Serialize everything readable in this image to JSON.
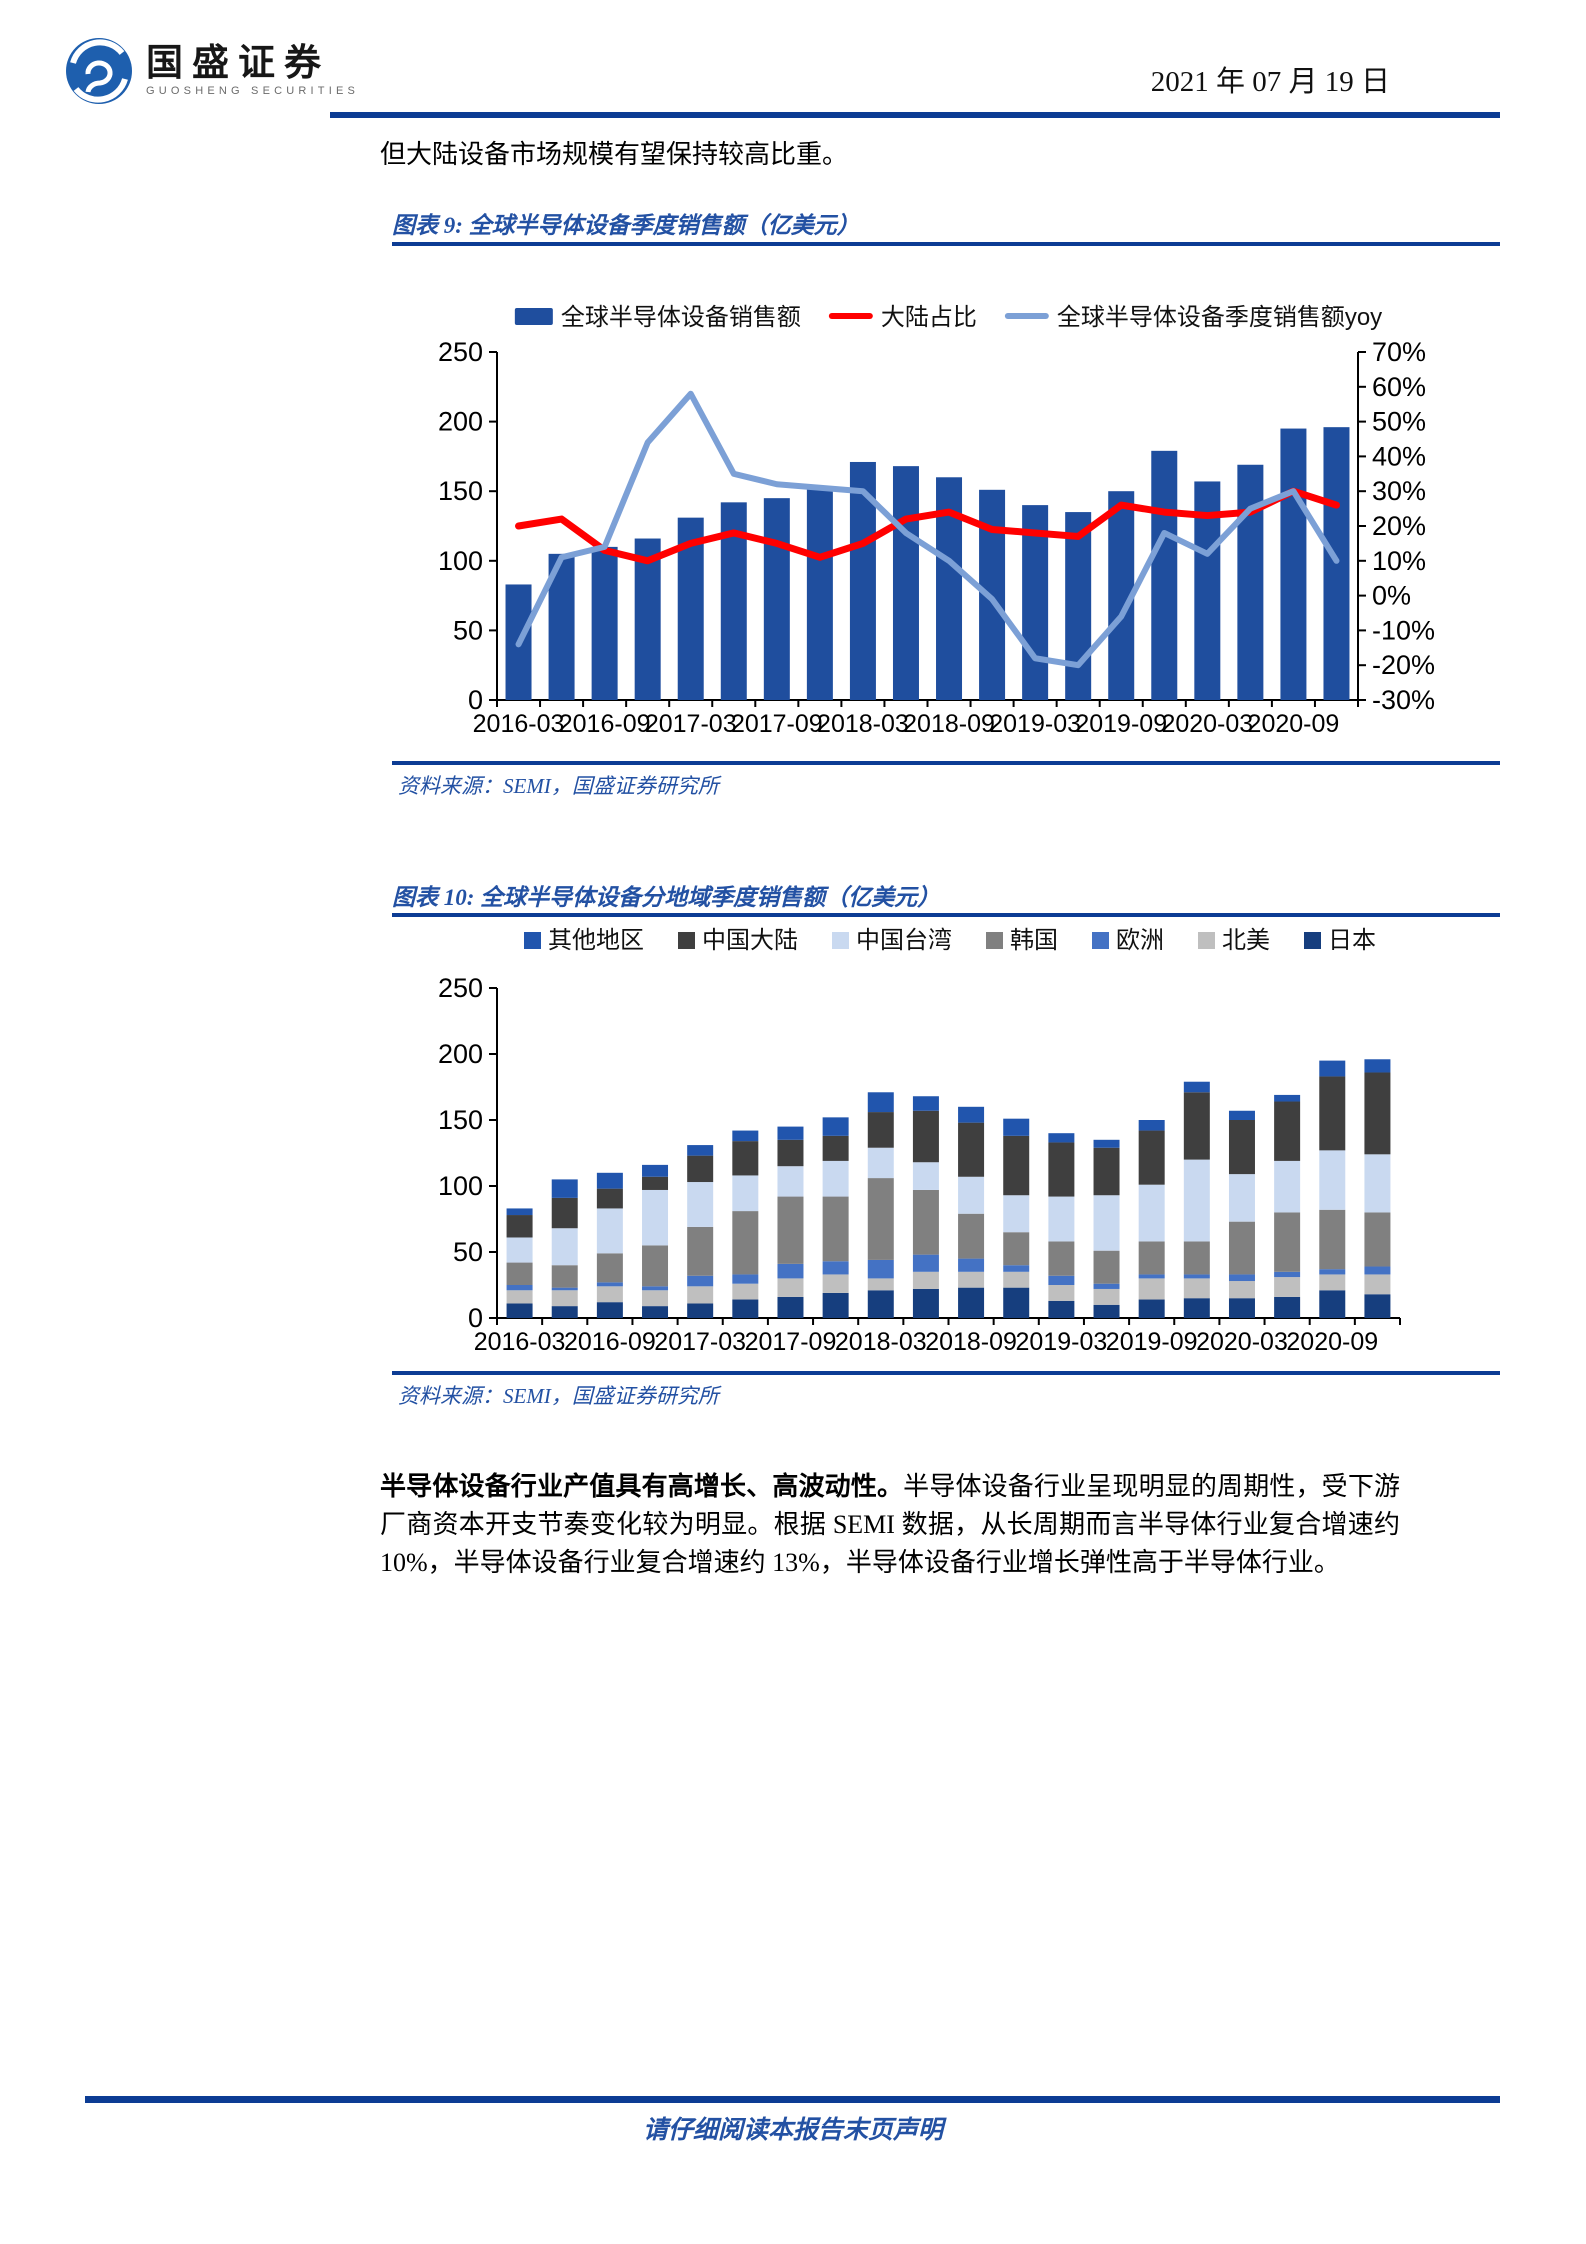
{
  "page": {
    "brand": {
      "name_cn": "国盛证券",
      "name_en": "GUOSHENG SECURITIES"
    },
    "date": "2021 年 07 月 19 日",
    "intro_text": "但大陆设备市场规模有望保持较高比重。",
    "footer_text": "请仔细阅读本报告末页声明"
  },
  "figure9": {
    "caption": "图表 9: 全球半导体设备季度销售额（亿美元）",
    "source": "资料来源：SEMI，国盛证券研究所"
  },
  "figure10": {
    "caption": "图表 10: 全球半导体设备分地域季度销售额（亿美元）",
    "source": "资料来源：SEMI，国盛证券研究所"
  },
  "paragraph": {
    "bold": "半导体设备行业产值具有高增长、高波动性。",
    "rest": "半导体设备行业呈现明显的周期性，受下游厂商资本开支节奏变化较为明显。根据 SEMI 数据，从长周期而言半导体行业复合增速约 10%，半导体设备行业复合增速约 13%，半导体设备行业增长弹性高于半导体行业。"
  },
  "chart_data": [
    {
      "id": "fig9",
      "type": "bar",
      "title": "全球半导体设备季度销售额（亿美元）",
      "x": [
        "2016-03",
        "2016-06",
        "2016-09",
        "2016-12",
        "2017-03",
        "2017-06",
        "2017-09",
        "2017-12",
        "2018-03",
        "2018-06",
        "2018-09",
        "2018-12",
        "2019-03",
        "2019-06",
        "2019-09",
        "2019-12",
        "2020-03",
        "2020-06",
        "2020-09",
        "2020-12"
      ],
      "x_label_every": 2,
      "legend_position": "top",
      "grid": false,
      "left_axis": {
        "min": 0,
        "max": 250,
        "ticks": [
          0,
          50,
          100,
          150,
          200,
          250
        ]
      },
      "right_axis": {
        "min": -30,
        "max": 70,
        "ticks": [
          -30,
          -20,
          -10,
          0,
          10,
          20,
          30,
          40,
          50,
          60,
          70
        ],
        "format": "percent"
      },
      "series": [
        {
          "name": "全球半导体设备销售额",
          "kind": "bar",
          "axis": "left",
          "color": "#1F4E9E",
          "values": [
            83,
            105,
            110,
            116,
            131,
            142,
            145,
            152,
            171,
            168,
            160,
            151,
            140,
            135,
            150,
            179,
            157,
            169,
            195,
            196
          ]
        },
        {
          "name": "大陆占比",
          "kind": "line",
          "axis": "right",
          "color": "#FF0000",
          "values": [
            20,
            22,
            13,
            10,
            15,
            18,
            15,
            11,
            15,
            22,
            24,
            19,
            18,
            17,
            26,
            24,
            23,
            24,
            30,
            26
          ]
        },
        {
          "name": "全球半导体设备季度销售额yoy",
          "kind": "line",
          "axis": "right",
          "color": "#7CA0D6",
          "values": [
            -14,
            11,
            14,
            44,
            58,
            35,
            32,
            31,
            30,
            18,
            10,
            -1,
            -18,
            -20,
            -6,
            18,
            12,
            25,
            30,
            10
          ]
        }
      ]
    },
    {
      "id": "fig10",
      "type": "stacked-bar",
      "title": "全球半导体设备分地域季度销售额（亿美元）",
      "x": [
        "2016-03",
        "2016-06",
        "2016-09",
        "2016-12",
        "2017-03",
        "2017-06",
        "2017-09",
        "2017-12",
        "2018-03",
        "2018-06",
        "2018-09",
        "2018-12",
        "2019-03",
        "2019-06",
        "2019-09",
        "2019-12",
        "2020-03",
        "2020-06",
        "2020-09",
        "2020-12"
      ],
      "x_label_every": 2,
      "legend_position": "top",
      "grid": false,
      "left_axis": {
        "min": 0,
        "max": 250,
        "ticks": [
          0,
          50,
          100,
          150,
          200,
          250
        ]
      },
      "stack_bottom_to_top": [
        "日本",
        "北美",
        "欧洲",
        "韩国",
        "中国台湾",
        "中国大陆",
        "其他地区"
      ],
      "series": [
        {
          "name": "其他地区",
          "color": "#2155AD",
          "values": [
            5,
            14,
            12,
            9,
            8,
            8,
            10,
            14,
            15,
            11,
            12,
            13,
            7,
            6,
            8,
            8,
            7,
            5,
            12,
            10
          ]
        },
        {
          "name": "中国大陆",
          "color": "#3F3F3F",
          "values": [
            17,
            23,
            15,
            10,
            20,
            26,
            20,
            19,
            27,
            39,
            41,
            45,
            41,
            36,
            41,
            51,
            41,
            45,
            56,
            62
          ]
        },
        {
          "name": "中国台湾",
          "color": "#C9D9F0",
          "values": [
            19,
            28,
            34,
            42,
            34,
            27,
            23,
            27,
            23,
            21,
            28,
            28,
            34,
            42,
            43,
            62,
            36,
            39,
            45,
            44
          ]
        },
        {
          "name": "韩国",
          "color": "#808080",
          "values": [
            17,
            17,
            22,
            31,
            37,
            48,
            51,
            49,
            62,
            49,
            34,
            25,
            26,
            25,
            25,
            25,
            40,
            45,
            45,
            41
          ]
        },
        {
          "name": "欧洲",
          "color": "#4472C4",
          "values": [
            4,
            2,
            3,
            3,
            8,
            7,
            11,
            10,
            14,
            13,
            10,
            5,
            7,
            4,
            3,
            3,
            5,
            4,
            4,
            6
          ]
        },
        {
          "name": "北美",
          "color": "#BFBFBF",
          "values": [
            10,
            12,
            12,
            12,
            13,
            12,
            14,
            14,
            9,
            13,
            12,
            12,
            12,
            12,
            16,
            15,
            13,
            15,
            12,
            15
          ]
        },
        {
          "name": "日本",
          "color": "#163E7E",
          "values": [
            11,
            9,
            12,
            9,
            11,
            14,
            16,
            19,
            21,
            22,
            23,
            23,
            13,
            10,
            14,
            15,
            15,
            16,
            21,
            18
          ]
        }
      ]
    }
  ]
}
